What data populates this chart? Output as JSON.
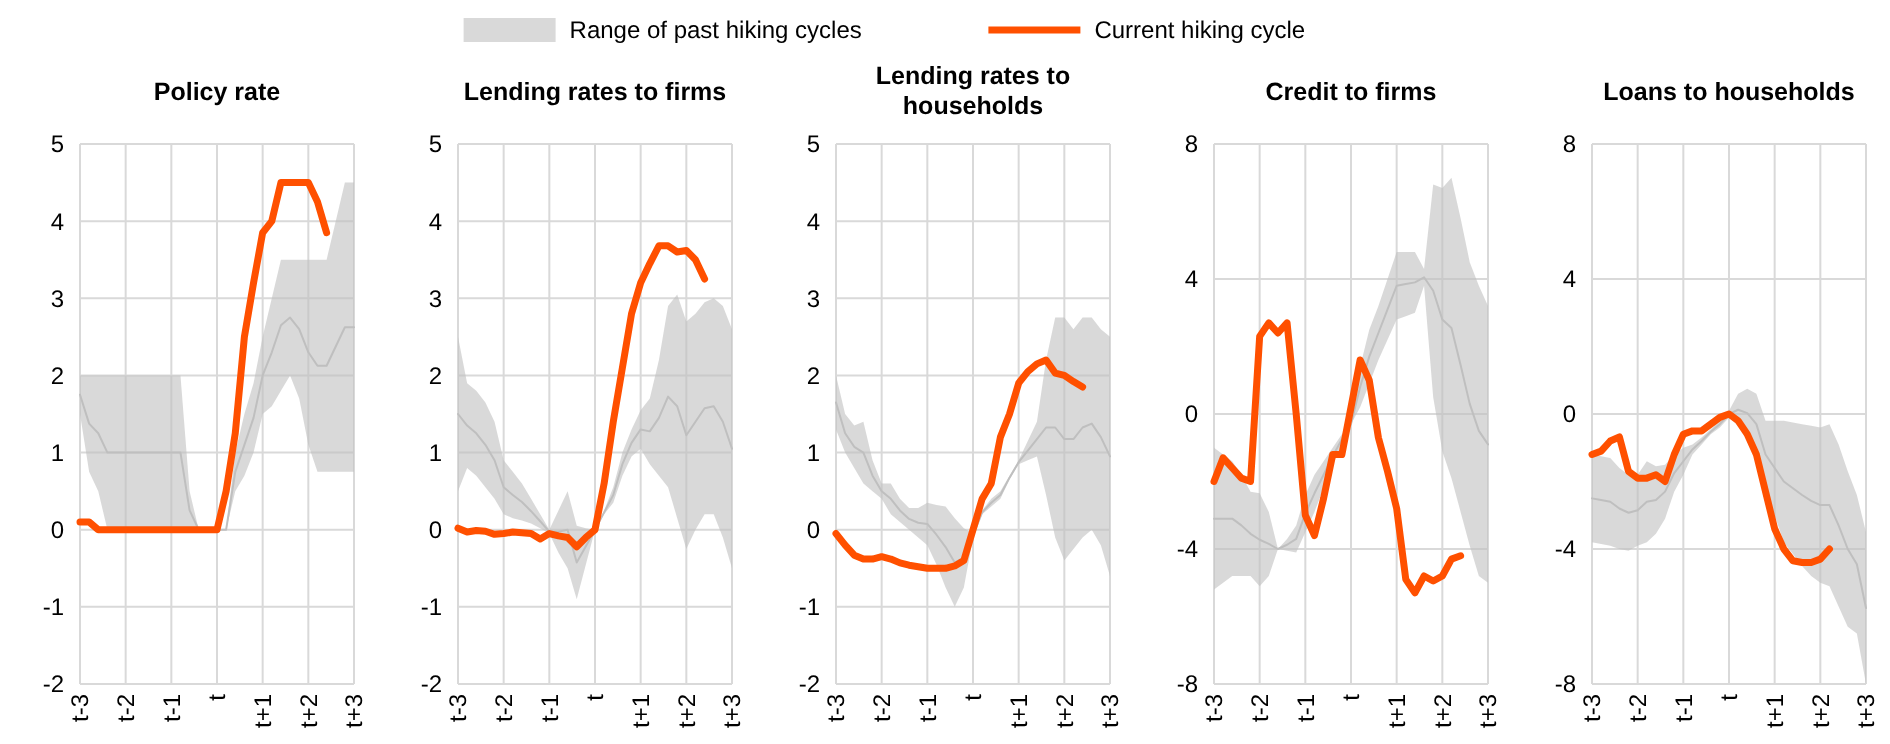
{
  "chart_data": [
    {
      "type": "line",
      "title": "Policy rate",
      "legend": "top",
      "grid": true,
      "ylim": [
        -2,
        5
      ],
      "yticks": [
        -2,
        -1,
        0,
        1,
        2,
        3,
        4,
        5
      ],
      "categories": [
        "t-3",
        null,
        null,
        null,
        null,
        "t-2",
        null,
        null,
        null,
        null,
        "t-1",
        null,
        null,
        null,
        null,
        "t",
        null,
        null,
        null,
        null,
        "t+1",
        null,
        null,
        null,
        null,
        "t+2",
        null,
        null,
        null,
        null,
        "t+3"
      ],
      "series": [
        {
          "name": "Range of past hiking cycles",
          "color": "#bfbfbf",
          "values": [
            1.75,
            1.375,
            1.25,
            1,
            1,
            1,
            1,
            1,
            1,
            1,
            1,
            1,
            0.25,
            0,
            0,
            0,
            0,
            0.75,
            1.1,
            1.45,
            2,
            2.3,
            2.65,
            2.75,
            2.6,
            2.3,
            2.125,
            2.125,
            2.375,
            2.625,
            2.625
          ],
          "upper": [
            2,
            2,
            2,
            2,
            2,
            2,
            2,
            2,
            2,
            2,
            2,
            2,
            0.5,
            0,
            0,
            0,
            0,
            1.0,
            1.5,
            1.9,
            2.5,
            3.0,
            3.5,
            3.5,
            3.5,
            3.5,
            3.5,
            3.5,
            4.0,
            4.5,
            4.5
          ],
          "lower": [
            1.5,
            0.75,
            0.5,
            0,
            0,
            0,
            0,
            0,
            0,
            0,
            0,
            0,
            0,
            0,
            0,
            0,
            0,
            0.5,
            0.7,
            1.0,
            1.5,
            1.6,
            1.8,
            2.0,
            1.7,
            1.1,
            0.75,
            0.75,
            0.75,
            0.75,
            0.75
          ]
        },
        {
          "name": "Current hiking cycle",
          "color": "#ff5000",
          "values": [
            0.1,
            0.1,
            0,
            0,
            0,
            0,
            0,
            0,
            0,
            0,
            0,
            0,
            0,
            0,
            0,
            0,
            0.5,
            1.25,
            2.5,
            3.2,
            3.85,
            4.0,
            4.5,
            4.5,
            4.5,
            4.5,
            4.25,
            3.85,
            null,
            null,
            null
          ]
        }
      ]
    },
    {
      "type": "line",
      "title": "Lending rates to firms",
      "grid": true,
      "ylim": [
        -2,
        5
      ],
      "yticks": [
        -2,
        -1,
        0,
        1,
        2,
        3,
        4,
        5
      ],
      "categories": [
        "t-3",
        null,
        null,
        null,
        null,
        "t-2",
        null,
        null,
        null,
        null,
        "t-1",
        null,
        null,
        null,
        null,
        "t",
        null,
        null,
        null,
        null,
        "t+1",
        null,
        null,
        null,
        null,
        "t+2",
        null,
        null,
        null,
        null,
        "t+3"
      ],
      "series": [
        {
          "color": "#bfbfbf",
          "values": [
            1.5,
            1.35,
            1.25,
            1.1,
            0.9,
            0.55,
            0.45,
            0.36,
            0.24,
            0.11,
            -0.025,
            -0.025,
            0,
            -0.425,
            -0.215,
            0,
            0.225,
            0.45,
            0.85,
            1.125,
            1.3,
            1.275,
            1.45,
            1.725,
            1.6,
            1.225,
            1.4,
            1.575,
            1.6,
            1.4,
            1.05
          ],
          "upper": [
            2.5,
            1.9,
            1.8,
            1.65,
            1.4,
            0.9,
            0.75,
            0.6,
            0.4,
            0.2,
            0,
            0.25,
            0.5,
            0.05,
            0.02,
            0,
            0.25,
            0.55,
            1.0,
            1.3,
            1.55,
            1.7,
            2.2,
            2.9,
            3.05,
            2.7,
            2.8,
            2.95,
            3.0,
            2.9,
            2.6
          ],
          "lower": [
            0.5,
            0.8,
            0.7,
            0.55,
            0.4,
            0.2,
            0.15,
            0.12,
            0.08,
            0.02,
            -0.05,
            -0.3,
            -0.5,
            -0.9,
            -0.45,
            0,
            0.2,
            0.35,
            0.7,
            0.95,
            1.05,
            0.85,
            0.7,
            0.55,
            0.15,
            -0.25,
            0.0,
            0.2,
            0.2,
            -0.1,
            -0.5
          ]
        },
        {
          "color": "#ff5000",
          "values": [
            0.02,
            -0.03,
            -0.01,
            -0.02,
            -0.06,
            -0.05,
            -0.03,
            -0.04,
            -0.05,
            -0.12,
            -0.05,
            -0.08,
            -0.1,
            -0.22,
            -0.1,
            0,
            0.6,
            1.4,
            2.1,
            2.8,
            3.2,
            3.45,
            3.68,
            3.68,
            3.6,
            3.62,
            3.5,
            3.25,
            null,
            null,
            null
          ]
        }
      ]
    },
    {
      "type": "line",
      "title": "Lending rates to households",
      "grid": true,
      "ylim": [
        -2,
        5
      ],
      "yticks": [
        -2,
        -1,
        0,
        1,
        2,
        3,
        4,
        5
      ],
      "categories": [
        "t-3",
        null,
        null,
        null,
        null,
        "t-2",
        null,
        null,
        null,
        null,
        "t-1",
        null,
        null,
        null,
        null,
        "t",
        null,
        null,
        null,
        null,
        "t+1",
        null,
        null,
        null,
        null,
        "t+2",
        null,
        null,
        null,
        null,
        "t+3"
      ],
      "series": [
        {
          "color": "#bfbfbf",
          "values": [
            1.65,
            1.25,
            1.075,
            1.0,
            0.7,
            0.5,
            0.4,
            0.25,
            0.14,
            0.09,
            0.075,
            -0.065,
            -0.225,
            -0.425,
            -0.365,
            -0.075,
            0.225,
            0.35,
            0.45,
            0.675,
            0.875,
            1.025,
            1.175,
            1.325,
            1.325,
            1.175,
            1.175,
            1.325,
            1.375,
            1.2,
            0.95
          ],
          "upper": [
            2.0,
            1.5,
            1.35,
            1.4,
            0.9,
            0.6,
            0.6,
            0.4,
            0.28,
            0.28,
            0.35,
            0.32,
            0.3,
            0.15,
            0.02,
            -0.05,
            0.25,
            0.4,
            0.5,
            0.7,
            0.9,
            1.15,
            1.4,
            2.2,
            2.75,
            2.75,
            2.6,
            2.75,
            2.75,
            2.6,
            2.5
          ],
          "lower": [
            1.3,
            1.0,
            0.8,
            0.6,
            0.5,
            0.4,
            0.2,
            0.1,
            0.0,
            -0.1,
            -0.2,
            -0.45,
            -0.75,
            -1.0,
            -0.75,
            -0.1,
            0.2,
            0.3,
            0.4,
            0.65,
            0.85,
            0.9,
            0.95,
            0.45,
            -0.1,
            -0.4,
            -0.25,
            -0.1,
            0.0,
            -0.2,
            -0.6
          ]
        },
        {
          "color": "#ff5000",
          "values": [
            -0.05,
            -0.2,
            -0.33,
            -0.38,
            -0.38,
            -0.35,
            -0.38,
            -0.43,
            -0.46,
            -0.48,
            -0.5,
            -0.5,
            -0.5,
            -0.47,
            -0.4,
            0,
            0.4,
            0.6,
            1.2,
            1.5,
            1.9,
            2.05,
            2.15,
            2.2,
            2.03,
            2.0,
            1.92,
            1.85,
            null,
            null,
            null
          ]
        }
      ]
    },
    {
      "type": "line",
      "title": "Credit to firms",
      "grid": true,
      "ylim": [
        -8,
        8
      ],
      "yticks": [
        -8,
        -4,
        0,
        4,
        8
      ],
      "categories": [
        "t-3",
        null,
        null,
        null,
        null,
        "t-2",
        null,
        null,
        null,
        null,
        "t-1",
        null,
        null,
        null,
        null,
        "t",
        null,
        null,
        null,
        null,
        "t+1",
        null,
        null,
        null,
        null,
        "t+2",
        null,
        null,
        null,
        null,
        "t+3"
      ],
      "series": [
        {
          "color": "#bfbfbf",
          "values": [
            -3.1,
            -3.1,
            -3.1,
            -3.3,
            -3.55,
            -3.725,
            -3.85,
            -4,
            -3.875,
            -3.7,
            -2.95,
            -2.35,
            -1.8,
            -1.25,
            -0.75,
            -0.3,
            0.8,
            1.7,
            2.4,
            3.1,
            3.8,
            3.85,
            3.9,
            4.05,
            3.65,
            2.8,
            2.55,
            1.45,
            0.3,
            -0.5,
            -0.9
          ],
          "upper": [
            -1,
            -1.2,
            -1.4,
            -1.8,
            -2.3,
            -2.35,
            -2.9,
            -4,
            -3.7,
            -3.3,
            -2.4,
            -1.8,
            -1.4,
            -1.0,
            -0.6,
            -0.3,
            1.4,
            2.5,
            3.2,
            4.0,
            4.8,
            4.8,
            4.8,
            4.3,
            6.8,
            6.7,
            7.0,
            5.8,
            4.5,
            3.8,
            3.2
          ],
          "lower": [
            -5.2,
            -5.0,
            -4.8,
            -4.8,
            -4.8,
            -5.1,
            -4.8,
            -4.0,
            -4.05,
            -4.1,
            -3.5,
            -2.9,
            -2.2,
            -1.5,
            -0.9,
            -0.3,
            0.2,
            0.9,
            1.6,
            2.2,
            2.8,
            2.9,
            3.0,
            3.8,
            0.5,
            -1.1,
            -1.9,
            -2.9,
            -3.9,
            -4.8,
            -5
          ]
        },
        {
          "color": "#ff5000",
          "values": [
            -2,
            -1.3,
            -1.6,
            -1.9,
            -2.0,
            2.3,
            2.7,
            2.4,
            2.7,
            0,
            -3.0,
            -3.6,
            -2.5,
            -1.2,
            -1.2,
            0.2,
            1.6,
            1.0,
            -0.7,
            -1.7,
            -2.8,
            -4.9,
            -5.3,
            -4.8,
            -4.95,
            -4.8,
            -4.3,
            -4.2,
            null,
            null,
            null
          ]
        }
      ]
    },
    {
      "type": "line",
      "title": "Loans to households",
      "grid": true,
      "ylim": [
        -8,
        8
      ],
      "yticks": [
        -8,
        -4,
        0,
        4,
        8
      ],
      "categories": [
        "t-3",
        null,
        null,
        null,
        null,
        "t-2",
        null,
        null,
        null,
        null,
        "t-1",
        null,
        null,
        null,
        null,
        "t",
        null,
        null,
        null,
        null,
        "t+1",
        null,
        null,
        null,
        null,
        "t+2",
        null,
        null,
        null,
        null,
        "t+3"
      ],
      "series": [
        {
          "color": "#bfbfbf",
          "values": [
            -2.5,
            -2.55,
            -2.6,
            -2.8,
            -2.925,
            -2.85,
            -2.6,
            -2.55,
            -2.3,
            -1.75,
            -1.4,
            -1.05,
            -0.8,
            -0.525,
            -0.3,
            0,
            0.125,
            0.025,
            -0.3,
            -1.2,
            -1.6,
            -2.0,
            -2.2,
            -2.4,
            -2.575,
            -2.7,
            -2.7,
            -3.3,
            -4.0,
            -4.45,
            -5.75
          ],
          "upper": [
            -1.2,
            -1.25,
            -1.3,
            -1.6,
            -1.8,
            -1.8,
            -1.4,
            -1.55,
            -1.5,
            -1.2,
            -1.0,
            -0.9,
            -0.7,
            -0.45,
            -0.2,
            0.1,
            0.6,
            0.75,
            0.6,
            -0.2,
            -0.2,
            -0.2,
            -0.25,
            -0.3,
            -0.35,
            -0.4,
            -0.3,
            -0.9,
            -1.7,
            -2.4,
            -3.5
          ],
          "lower": [
            -3.8,
            -3.85,
            -3.9,
            -4.0,
            -4.05,
            -3.9,
            -3.8,
            -3.55,
            -3.1,
            -2.3,
            -1.8,
            -1.2,
            -0.9,
            -0.6,
            -0.4,
            -0.1,
            -0.35,
            -0.7,
            -1.2,
            -2.2,
            -3.0,
            -3.8,
            -4.15,
            -4.5,
            -4.8,
            -5.0,
            -5.1,
            -5.7,
            -6.3,
            -6.5,
            -8
          ]
        },
        {
          "color": "#ff5000",
          "values": [
            -1.2,
            -1.1,
            -0.8,
            -0.68,
            -1.7,
            -1.9,
            -1.9,
            -1.8,
            -2.0,
            -1.2,
            -0.6,
            -0.5,
            -0.5,
            -0.3,
            -0.1,
            0,
            -0.2,
            -0.6,
            -1.2,
            -2.3,
            -3.4,
            -4.0,
            -4.35,
            -4.4,
            -4.4,
            -4.3,
            -4.0,
            null,
            null,
            null,
            null
          ]
        }
      ]
    }
  ]
}
